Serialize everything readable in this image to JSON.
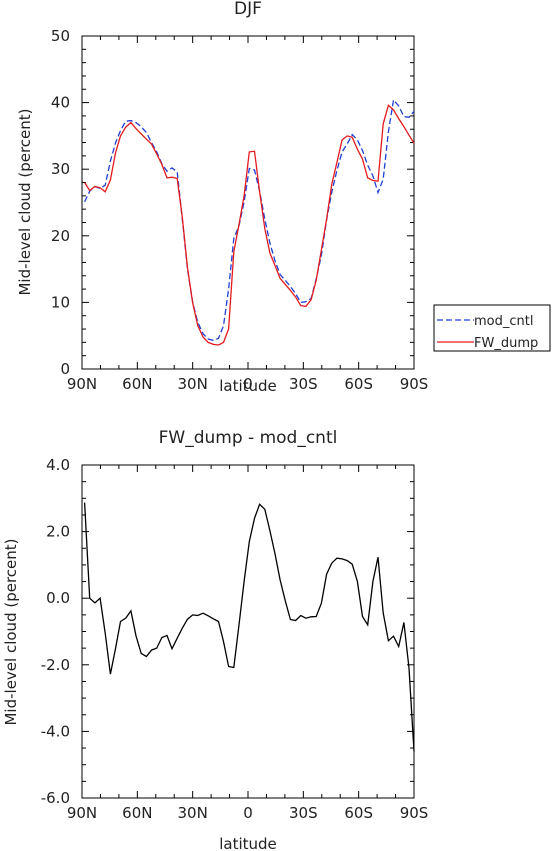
{
  "chart_data": [
    {
      "type": "line",
      "title": "DJF",
      "xlabel": "latitude",
      "ylabel": "Mid-level cloud (percent)",
      "x_tick_labels": [
        "90N",
        "60N",
        "30N",
        "0",
        "30S",
        "60S",
        "90S"
      ],
      "y_tick_labels": [
        "0",
        "10",
        "20",
        "30",
        "40",
        "50"
      ],
      "ylim": [
        0,
        50
      ],
      "x": [
        -88.6,
        -85.8,
        -83.0,
        -80.2,
        -77.4,
        -74.6,
        -71.8,
        -69.1,
        -66.3,
        -63.5,
        -60.7,
        -57.9,
        -55.1,
        -52.3,
        -49.5,
        -46.7,
        -43.9,
        -41.2,
        -38.4,
        -35.6,
        -32.8,
        -30.0,
        -27.2,
        -24.4,
        -21.6,
        -18.8,
        -16.0,
        -13.3,
        -10.5,
        -7.7,
        -4.9,
        -2.1,
        0.7,
        3.5,
        6.3,
        9.1,
        11.9,
        14.7,
        17.4,
        20.2,
        23.0,
        25.8,
        28.6,
        31.4,
        34.2,
        37.0,
        39.8,
        42.6,
        45.4,
        48.2,
        51.0,
        53.8,
        56.5,
        59.3,
        62.1,
        64.9,
        67.7,
        70.5,
        73.3,
        76.1,
        78.9,
        81.7,
        84.5,
        87.3,
        90.0
      ],
      "series": [
        {
          "name": "mod_cntl",
          "color": "#1f3fd6",
          "dash": "dashed",
          "values": [
            25.1,
            26.7,
            27.4,
            27.1,
            27.6,
            31.2,
            34.0,
            35.8,
            37.2,
            37.3,
            37.0,
            36.4,
            35.5,
            34.0,
            32.6,
            30.8,
            29.7,
            30.2,
            29.6,
            22.5,
            15.0,
            10.0,
            7.0,
            5.3,
            4.5,
            4.3,
            4.6,
            6.5,
            12.0,
            19.6,
            21.5,
            25.1,
            30.1,
            29.9,
            26.7,
            22.5,
            18.9,
            16.2,
            14.2,
            13.3,
            12.4,
            11.3,
            10.0,
            10.1,
            10.6,
            13.5,
            17.1,
            22.4,
            26.5,
            29.8,
            32.6,
            33.8,
            35.2,
            34.4,
            32.8,
            30.6,
            29.0,
            26.5,
            28.5,
            35.6,
            40.4,
            39.5,
            37.9,
            37.8,
            38.7
          ]
        },
        {
          "name": "FW_dump",
          "color": "#e31a1c",
          "dash": "solid",
          "values": [
            28.0,
            26.8,
            27.4,
            27.2,
            26.6,
            28.4,
            32.5,
            35.0,
            36.3,
            37.0,
            36.1,
            35.3,
            34.5,
            33.8,
            32.3,
            30.7,
            28.7,
            28.8,
            28.6,
            22.8,
            15.2,
            9.9,
            6.5,
            4.8,
            4.0,
            3.7,
            3.6,
            4.0,
            6.0,
            17.6,
            21.7,
            26.0,
            32.6,
            32.7,
            26.6,
            21.1,
            17.4,
            15.5,
            13.6,
            12.7,
            11.8,
            10.8,
            9.5,
            9.4,
            10.4,
            13.3,
            17.9,
            22.5,
            27.7,
            31.0,
            34.4,
            35.0,
            34.8,
            33.0,
            31.5,
            28.7,
            28.3,
            28.2,
            36.8,
            39.6,
            38.9,
            37.6,
            36.4,
            35.1,
            33.9
          ]
        }
      ],
      "legend": "right"
    },
    {
      "type": "line",
      "title": "FW_dump - mod_cntl",
      "xlabel": "latitude",
      "ylabel": "Mid-level cloud (percent)",
      "x_tick_labels": [
        "90N",
        "60N",
        "30N",
        "0",
        "30S",
        "60S",
        "90S"
      ],
      "y_tick_labels": [
        "-6.0",
        "-4.0",
        "-2.0",
        "0.0",
        "2.0",
        "4.0"
      ],
      "ylim": [
        -6,
        4
      ],
      "x": [
        -88.6,
        -85.8,
        -83.0,
        -80.2,
        -77.4,
        -74.6,
        -71.8,
        -69.1,
        -66.3,
        -63.5,
        -60.7,
        -57.9,
        -55.1,
        -52.3,
        -49.5,
        -46.7,
        -43.9,
        -41.2,
        -38.4,
        -35.6,
        -32.8,
        -30.0,
        -27.2,
        -24.4,
        -21.6,
        -18.8,
        -16.0,
        -13.3,
        -10.5,
        -7.7,
        -4.9,
        -2.1,
        0.7,
        3.5,
        6.3,
        9.1,
        11.9,
        14.7,
        17.4,
        20.2,
        23.0,
        25.8,
        28.6,
        31.4,
        34.2,
        37.0,
        39.8,
        42.6,
        45.4,
        48.2,
        51.0,
        53.8,
        56.5,
        59.3,
        62.1,
        64.9,
        67.7,
        70.5,
        73.3,
        76.1,
        78.9,
        81.7,
        84.5,
        87.3,
        90.0
      ],
      "series": [
        {
          "name": "",
          "color": "#000000",
          "dash": "solid",
          "values": [
            2.87,
            0.0,
            -0.14,
            0.0,
            -1.05,
            -2.28,
            -1.5,
            -0.7,
            -0.6,
            -0.38,
            -1.13,
            -1.66,
            -1.75,
            -1.56,
            -1.5,
            -1.18,
            -1.12,
            -1.52,
            -1.2,
            -0.9,
            -0.63,
            -0.5,
            -0.52,
            -0.45,
            -0.53,
            -0.62,
            -0.7,
            -1.3,
            -2.05,
            -2.08,
            -0.8,
            0.5,
            1.7,
            2.4,
            2.82,
            2.67,
            2.03,
            1.32,
            0.55,
            -0.08,
            -0.64,
            -0.67,
            -0.52,
            -0.6,
            -0.56,
            -0.55,
            -0.15,
            0.72,
            1.05,
            1.2,
            1.18,
            1.13,
            1.02,
            0.5,
            -0.55,
            -0.8,
            0.5,
            1.23,
            -0.44,
            -1.28,
            -1.14,
            -1.45,
            -0.73,
            -2.1,
            -4.6
          ]
        }
      ]
    }
  ]
}
